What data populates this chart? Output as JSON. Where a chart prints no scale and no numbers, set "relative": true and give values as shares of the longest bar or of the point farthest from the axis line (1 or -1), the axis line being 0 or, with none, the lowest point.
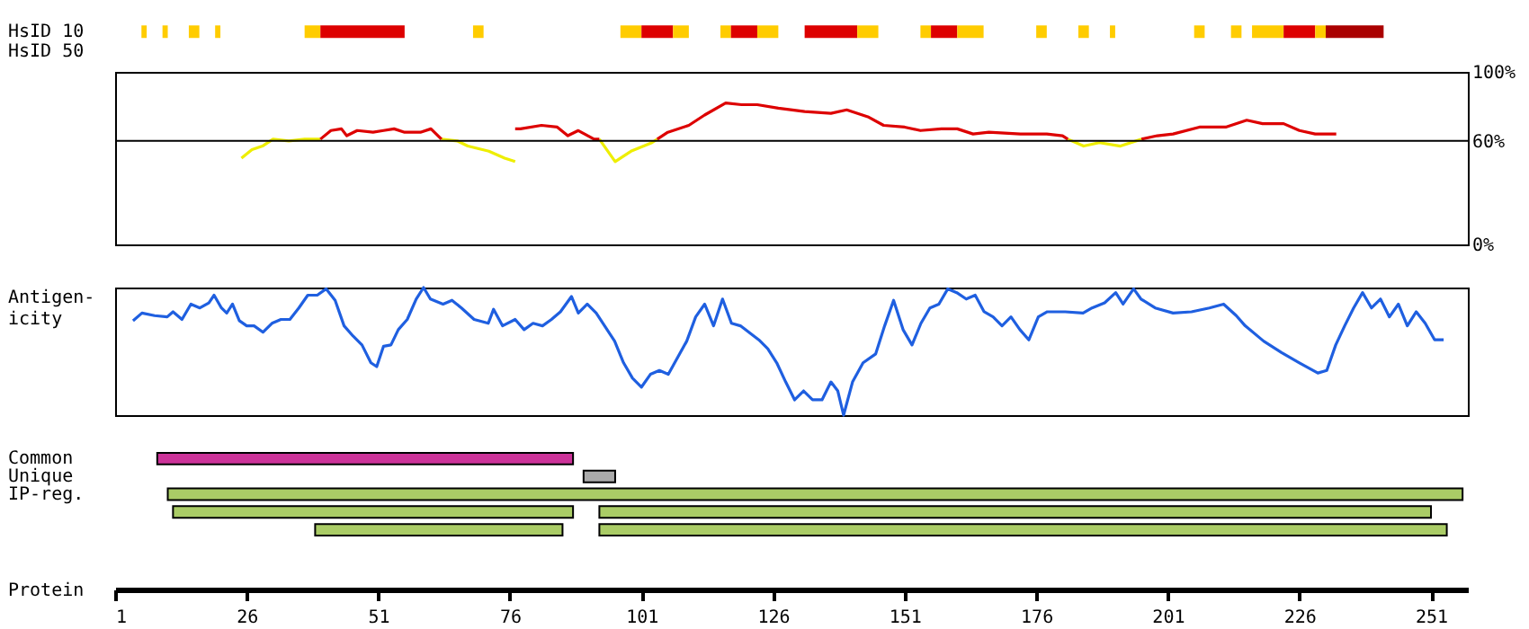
{
  "chart_data": [
    {
      "type": "bar",
      "orientation": "horizontal",
      "categories": [
        "HsID 10",
        "HsID 50"
      ],
      "xlim": [
        1,
        258
      ],
      "tick_labels": "y",
      "series": [
        {
          "color": "#ffcc00",
          "base": [
            6,
            null
          ],
          "values": [
            1,
            null
          ]
        },
        {
          "color": "#ffcc00",
          "base": [
            10,
            null
          ],
          "values": [
            1,
            null
          ]
        },
        {
          "color": "#ffcc00",
          "base": [
            15,
            null
          ],
          "values": [
            2,
            null
          ]
        },
        {
          "color": "#ffcc00",
          "base": [
            20,
            null
          ],
          "values": [
            1,
            null
          ]
        },
        {
          "color": "#ffcc00",
          "base": [
            37,
            null
          ],
          "values": [
            3,
            null
          ]
        },
        {
          "color": "#dd0000",
          "base": [
            40,
            null
          ],
          "values": [
            16,
            null
          ]
        },
        {
          "color": "#ffcc00",
          "base": [
            69,
            null
          ],
          "values": [
            2,
            null
          ]
        },
        {
          "color": "#ffcc00",
          "base": [
            97,
            null
          ],
          "values": [
            4,
            null
          ]
        },
        {
          "color": "#dd0000",
          "base": [
            101,
            null
          ],
          "values": [
            6,
            null
          ]
        },
        {
          "color": "#ffcc00",
          "base": [
            107,
            null
          ],
          "values": [
            3,
            null
          ]
        },
        {
          "color": "#ffcc00",
          "base": [
            116,
            null
          ],
          "values": [
            2,
            null
          ]
        },
        {
          "color": "#dd0000",
          "base": [
            118,
            null
          ],
          "values": [
            5,
            null
          ]
        },
        {
          "color": "#ffcc00",
          "base": [
            123,
            null
          ],
          "values": [
            4,
            null
          ]
        },
        {
          "color": "#dd0000",
          "base": [
            132,
            null
          ],
          "values": [
            10,
            null
          ]
        },
        {
          "color": "#ffcc00",
          "base": [
            142,
            null
          ],
          "values": [
            4,
            null
          ]
        },
        {
          "color": "#ffcc00",
          "base": [
            154,
            null
          ],
          "values": [
            2,
            null
          ]
        },
        {
          "color": "#dd0000",
          "base": [
            156,
            null
          ],
          "values": [
            5,
            null
          ]
        },
        {
          "color": "#ffcc00",
          "base": [
            161,
            null
          ],
          "values": [
            5,
            null
          ]
        },
        {
          "color": "#ffcc00",
          "base": [
            176,
            null
          ],
          "values": [
            2,
            null
          ]
        },
        {
          "color": "#ffcc00",
          "base": [
            184,
            null
          ],
          "values": [
            2,
            null
          ]
        },
        {
          "color": "#ffcc00",
          "base": [
            190,
            null
          ],
          "values": [
            1,
            null
          ]
        },
        {
          "color": "#ffcc00",
          "base": [
            206,
            null
          ],
          "values": [
            2,
            null
          ]
        },
        {
          "color": "#ffcc00",
          "base": [
            213,
            null
          ],
          "values": [
            2,
            null
          ]
        },
        {
          "color": "#ffcc00",
          "base": [
            217,
            null
          ],
          "values": [
            6,
            null
          ]
        },
        {
          "color": "#dd0000",
          "base": [
            223,
            null
          ],
          "values": [
            6,
            null
          ]
        },
        {
          "color": "#ffcc00",
          "base": [
            229,
            null
          ],
          "values": [
            2,
            null
          ]
        },
        {
          "color": "#aa0000",
          "base": [
            231,
            null
          ],
          "values": [
            11,
            null
          ]
        }
      ]
    },
    {
      "type": "line",
      "xlim": [
        1,
        258
      ],
      "ylim": [
        0,
        100
      ],
      "yticks": [
        {
          "value": 0,
          "label": "0%"
        },
        {
          "value": 60,
          "label": "60%"
        },
        {
          "value": 100,
          "label": "100%"
        }
      ],
      "tick_labels": "y",
      "ref_lines": [
        {
          "axis": "y",
          "value": 60,
          "color": "#000000"
        }
      ],
      "series": [
        {
          "color": "#eeee00",
          "x": [
            25,
            27,
            29,
            31,
            34,
            37,
            40,
            41,
            63,
            66,
            68,
            72,
            75,
            77,
            78,
            93,
            96,
            99,
            103,
            104,
            105,
            182,
            185,
            188,
            192,
            196
          ],
          "values": [
            50,
            55,
            57,
            61,
            60,
            61,
            61,
            null,
            61,
            60,
            57,
            54,
            50,
            48,
            null,
            61,
            48,
            54,
            59,
            61,
            null,
            61,
            57,
            59,
            57,
            61
          ]
        },
        {
          "color": "#dd0000",
          "x": [
            40,
            42,
            44,
            45,
            47,
            50,
            52,
            54,
            56,
            59,
            61,
            63,
            64,
            77,
            78,
            82,
            85,
            87,
            89,
            92,
            93,
            94,
            104,
            106,
            110,
            113,
            117,
            120,
            123,
            127,
            132,
            137,
            140,
            144,
            147,
            151,
            154,
            158,
            161,
            164,
            167,
            173,
            178,
            181,
            182,
            183,
            196,
            199,
            202,
            207,
            212,
            216,
            219,
            223,
            226,
            229,
            233
          ],
          "values": [
            61,
            66,
            67,
            63,
            66,
            65,
            66,
            67,
            65,
            65,
            67,
            61,
            null,
            67,
            67,
            69,
            68,
            63,
            66,
            61,
            61,
            null,
            61,
            65,
            69,
            75,
            82,
            81,
            81,
            79,
            77,
            76,
            78,
            74,
            69,
            68,
            66,
            67,
            67,
            64,
            65,
            64,
            64,
            63,
            61,
            null,
            61,
            63,
            64,
            68,
            68,
            72,
            70,
            70,
            66,
            64,
            64
          ]
        }
      ]
    },
    {
      "type": "line",
      "relative": true,
      "xlim": [
        1,
        258
      ],
      "tick_labels": false,
      "ylabel": "Antigen-\nicity",
      "series": [
        {
          "color": "#1f5fe0",
          "x": [
            4.4,
            6.1,
            8.5,
            10.9,
            12,
            13.7,
            15.4,
            17.1,
            18.8,
            19.8,
            21.2,
            22.2,
            23.3,
            24.6,
            26,
            27.4,
            29.1,
            30.8,
            32.5,
            34.2,
            35.9,
            37.6,
            39.4,
            41.1,
            42.8,
            44.5,
            46.2,
            47.9,
            49.6,
            50.7,
            52,
            53.4,
            54.8,
            56.5,
            58.2,
            59.6,
            60.9,
            63.3,
            65,
            66.8,
            69.2,
            71.9,
            72.9,
            74.6,
            77,
            78.7,
            80.4,
            82.2,
            83.9,
            85.6,
            87.7,
            89,
            90.7,
            92.4,
            95.9,
            97.6,
            99.3,
            101,
            102.7,
            104.4,
            106.1,
            109.6,
            111.3,
            113,
            114.7,
            116.4,
            118.1,
            119.8,
            123.3,
            125,
            126.7,
            128.4,
            130.1,
            131.8,
            133.5,
            135.3,
            137,
            138.3,
            139.4,
            141.1,
            143.1,
            145.5,
            147.2,
            148.9,
            150.7,
            152.4,
            154.1,
            155.8,
            157.5,
            159.2,
            160.9,
            162.7,
            164.4,
            166.1,
            167.8,
            169.5,
            171.2,
            172.9,
            174.6,
            176.4,
            178.1,
            181.5,
            184.9,
            186.6,
            189,
            191.1,
            192.5,
            194.5,
            195.9,
            198.6,
            202,
            205.5,
            208.9,
            211.6,
            214,
            215.7,
            219.2,
            222.6,
            226,
            229.5,
            231.2,
            232.9,
            234.6,
            236.3,
            238,
            239.7,
            241.4,
            243.1,
            244.8,
            246.5,
            248.2,
            249.9,
            251.7,
            253.4
          ],
          "values": [
            0.74,
            0.8,
            0.78,
            0.77,
            0.81,
            0.75,
            0.87,
            0.84,
            0.88,
            0.94,
            0.84,
            0.8,
            0.87,
            0.74,
            0.7,
            0.7,
            0.65,
            0.72,
            0.75,
            0.75,
            0.84,
            0.94,
            0.94,
            0.99,
            0.9,
            0.7,
            0.62,
            0.55,
            0.41,
            0.38,
            0.54,
            0.55,
            0.67,
            0.75,
            0.91,
            1.0,
            0.91,
            0.87,
            0.9,
            0.84,
            0.75,
            0.72,
            0.83,
            0.7,
            0.75,
            0.67,
            0.72,
            0.7,
            0.75,
            0.81,
            0.93,
            0.8,
            0.87,
            0.8,
            0.58,
            0.41,
            0.29,
            0.22,
            0.32,
            0.35,
            0.32,
            0.58,
            0.77,
            0.87,
            0.7,
            0.91,
            0.72,
            0.7,
            0.59,
            0.52,
            0.41,
            0.26,
            0.12,
            0.19,
            0.12,
            0.12,
            0.26,
            0.19,
            0.0,
            0.26,
            0.41,
            0.48,
            0.7,
            0.9,
            0.67,
            0.55,
            0.72,
            0.84,
            0.87,
            0.99,
            0.96,
            0.91,
            0.94,
            0.81,
            0.77,
            0.7,
            0.77,
            0.67,
            0.59,
            0.77,
            0.81,
            0.81,
            0.8,
            0.84,
            0.88,
            0.96,
            0.87,
            0.99,
            0.91,
            0.84,
            0.8,
            0.81,
            0.84,
            0.87,
            0.78,
            0.7,
            0.58,
            0.49,
            0.41,
            0.33,
            0.35,
            0.55,
            0.7,
            0.84,
            0.96,
            0.84,
            0.91,
            0.77,
            0.87,
            0.7,
            0.81,
            0.72,
            0.59,
            0.59
          ]
        }
      ]
    },
    {
      "type": "bar",
      "orientation": "horizontal",
      "categories": [
        "Common",
        "Unique",
        "IP-reg.",
        null,
        null
      ],
      "xlim": [
        1,
        258
      ],
      "xticks": [
        1,
        26,
        51,
        76,
        101,
        126,
        151,
        176,
        201,
        226,
        251
      ],
      "xlabel": "Protein",
      "series": [
        {
          "colors": [
            "#cc3399",
            "#aaaaaa",
            "#aacc66",
            "#aacc66",
            "#aacc66"
          ],
          "base": [
            9,
            90,
            11,
            12,
            39
          ],
          "values": [
            79,
            6,
            246,
            76,
            47
          ]
        },
        {
          "colors": [
            null,
            null,
            null,
            "#aacc66",
            "#aacc66"
          ],
          "base": [
            null,
            null,
            null,
            93,
            93
          ],
          "values": [
            null,
            null,
            null,
            158,
            161
          ]
        }
      ]
    }
  ]
}
